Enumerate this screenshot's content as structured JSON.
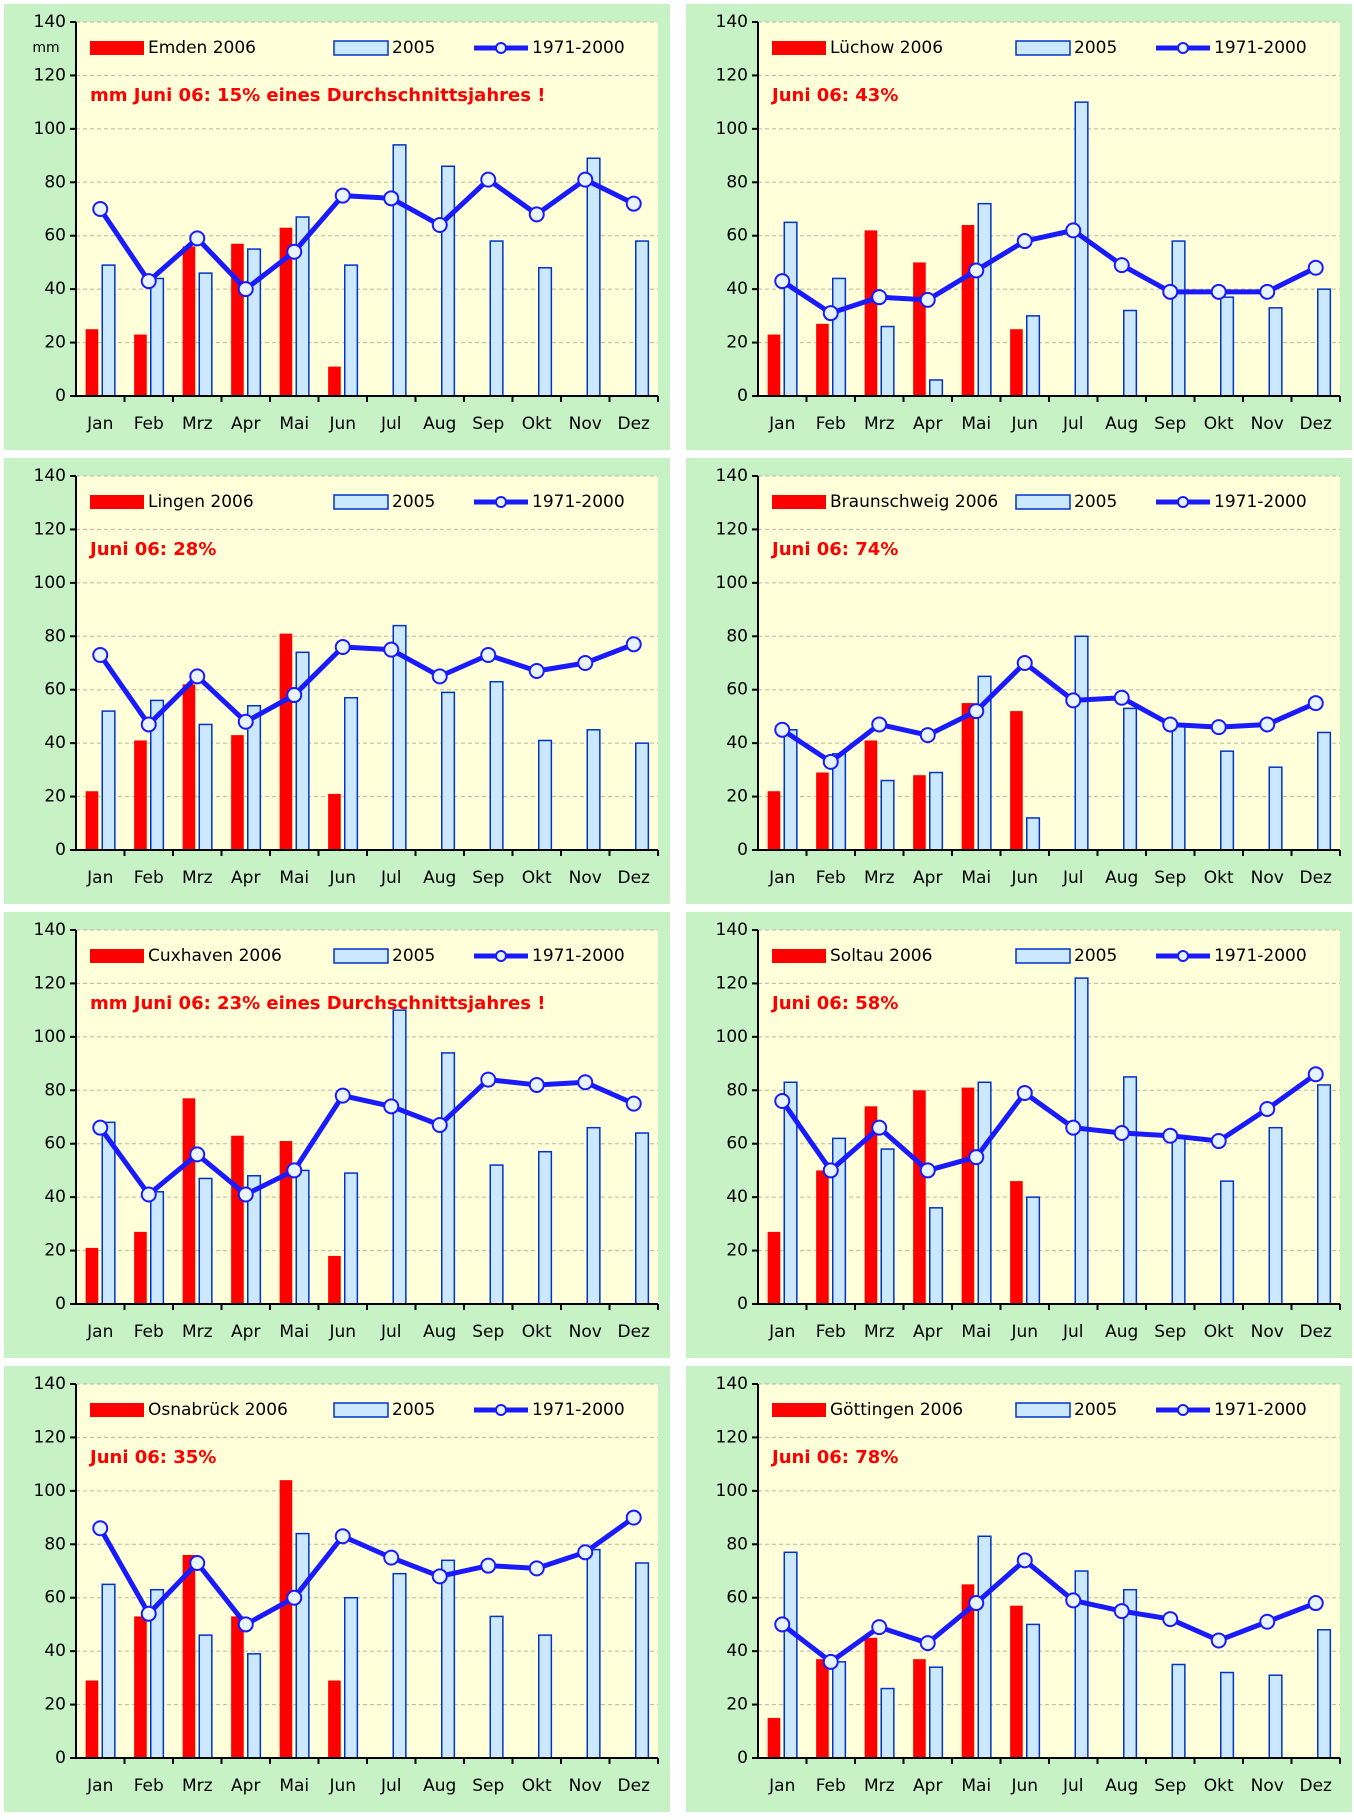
{
  "chart_data": [
    {
      "type": "bar",
      "ylabel": "mm",
      "annotation": "mm Juni 06: 15% eines Durchschnittsjahres !",
      "categories": [
        "Jan",
        "Feb",
        "Mrz",
        "Apr",
        "Mai",
        "Jun",
        "Jul",
        "Aug",
        "Sep",
        "Okt",
        "Nov",
        "Dez"
      ],
      "ylim": [
        0,
        140
      ],
      "yticks": [
        0,
        20,
        40,
        60,
        80,
        100,
        120,
        140
      ],
      "grid": true,
      "series": [
        {
          "name": "Emden 2006",
          "type": "bar",
          "color": "#ff0000",
          "values": [
            25,
            23,
            56,
            57,
            63,
            11,
            null,
            null,
            null,
            null,
            null,
            null
          ]
        },
        {
          "name": "2005",
          "type": "bar",
          "color": "#cce8ff",
          "values": [
            49,
            44,
            46,
            55,
            67,
            49,
            94,
            86,
            58,
            48,
            89,
            58
          ]
        },
        {
          "name": "1971-2000",
          "type": "line",
          "color": "#1a1aff",
          "values": [
            70,
            43,
            59,
            40,
            54,
            75,
            74,
            64,
            81,
            68,
            81,
            72
          ]
        }
      ]
    },
    {
      "type": "bar",
      "annotation": "Juni 06: 43%",
      "categories": [
        "Jan",
        "Feb",
        "Mrz",
        "Apr",
        "Mai",
        "Jun",
        "Jul",
        "Aug",
        "Sep",
        "Okt",
        "Nov",
        "Dez"
      ],
      "ylim": [
        0,
        140
      ],
      "yticks": [
        0,
        20,
        40,
        60,
        80,
        100,
        120,
        140
      ],
      "grid": true,
      "series": [
        {
          "name": "Lüchow 2006",
          "type": "bar",
          "color": "#ff0000",
          "values": [
            23,
            27,
            62,
            50,
            64,
            25,
            null,
            null,
            null,
            null,
            null,
            null
          ]
        },
        {
          "name": "2005",
          "type": "bar",
          "color": "#cce8ff",
          "values": [
            65,
            44,
            26,
            6,
            72,
            30,
            110,
            32,
            58,
            37,
            33,
            40
          ]
        },
        {
          "name": "1971-2000",
          "type": "line",
          "color": "#1a1aff",
          "values": [
            43,
            31,
            37,
            36,
            47,
            58,
            62,
            49,
            39,
            39,
            39,
            48
          ]
        }
      ]
    },
    {
      "type": "bar",
      "annotation": "Juni 06: 28%",
      "categories": [
        "Jan",
        "Feb",
        "Mrz",
        "Apr",
        "Mai",
        "Jun",
        "Jul",
        "Aug",
        "Sep",
        "Okt",
        "Nov",
        "Dez"
      ],
      "ylim": [
        0,
        140
      ],
      "yticks": [
        0,
        20,
        40,
        60,
        80,
        100,
        120,
        140
      ],
      "grid": true,
      "series": [
        {
          "name": "Lingen 2006",
          "type": "bar",
          "color": "#ff0000",
          "values": [
            22,
            41,
            62,
            43,
            81,
            21,
            null,
            null,
            null,
            null,
            null,
            null
          ]
        },
        {
          "name": "2005",
          "type": "bar",
          "color": "#cce8ff",
          "values": [
            52,
            56,
            47,
            54,
            74,
            57,
            84,
            59,
            63,
            41,
            45,
            40
          ]
        },
        {
          "name": "1971-2000",
          "type": "line",
          "color": "#1a1aff",
          "values": [
            73,
            47,
            65,
            48,
            58,
            76,
            75,
            65,
            73,
            67,
            70,
            77
          ]
        }
      ]
    },
    {
      "type": "bar",
      "annotation": "Juni 06: 74%",
      "categories": [
        "Jan",
        "Feb",
        "Mrz",
        "Apr",
        "Mai",
        "Jun",
        "Jul",
        "Aug",
        "Sep",
        "Okt",
        "Nov",
        "Dez"
      ],
      "ylim": [
        0,
        140
      ],
      "yticks": [
        0,
        20,
        40,
        60,
        80,
        100,
        120,
        140
      ],
      "grid": true,
      "series": [
        {
          "name": "Braunschweig 2006",
          "type": "bar",
          "color": "#ff0000",
          "values": [
            22,
            29,
            41,
            28,
            55,
            52,
            null,
            null,
            null,
            null,
            null,
            null
          ]
        },
        {
          "name": "2005",
          "type": "bar",
          "color": "#cce8ff",
          "values": [
            45,
            36,
            26,
            29,
            65,
            12,
            80,
            53,
            47,
            37,
            31,
            44
          ]
        },
        {
          "name": "1971-2000",
          "type": "line",
          "color": "#1a1aff",
          "values": [
            45,
            33,
            47,
            43,
            52,
            70,
            56,
            57,
            47,
            46,
            47,
            55
          ]
        }
      ]
    },
    {
      "type": "bar",
      "annotation": "mm Juni 06: 23% eines Durchschnittsjahres !",
      "categories": [
        "Jan",
        "Feb",
        "Mrz",
        "Apr",
        "Mai",
        "Jun",
        "Jul",
        "Aug",
        "Sep",
        "Okt",
        "Nov",
        "Dez"
      ],
      "ylim": [
        0,
        140
      ],
      "yticks": [
        0,
        20,
        40,
        60,
        80,
        100,
        120,
        140
      ],
      "grid": true,
      "series": [
        {
          "name": "Cuxhaven 2006",
          "type": "bar",
          "color": "#ff0000",
          "values": [
            21,
            27,
            77,
            63,
            61,
            18,
            null,
            null,
            null,
            null,
            null,
            null
          ]
        },
        {
          "name": "2005",
          "type": "bar",
          "color": "#cce8ff",
          "values": [
            68,
            42,
            47,
            48,
            50,
            49,
            110,
            94,
            52,
            57,
            66,
            64
          ]
        },
        {
          "name": "1971-2000",
          "type": "line",
          "color": "#1a1aff",
          "values": [
            66,
            41,
            56,
            41,
            50,
            78,
            74,
            67,
            84,
            82,
            83,
            75
          ]
        }
      ]
    },
    {
      "type": "bar",
      "annotation": "Juni 06: 58%",
      "categories": [
        "Jan",
        "Feb",
        "Mrz",
        "Apr",
        "Mai",
        "Jun",
        "Jul",
        "Aug",
        "Sep",
        "Okt",
        "Nov",
        "Dez"
      ],
      "ylim": [
        0,
        140
      ],
      "yticks": [
        0,
        20,
        40,
        60,
        80,
        100,
        120,
        140
      ],
      "grid": true,
      "series": [
        {
          "name": "Soltau 2006",
          "type": "bar",
          "color": "#ff0000",
          "values": [
            27,
            50,
            74,
            80,
            81,
            46,
            null,
            null,
            null,
            null,
            null,
            null
          ]
        },
        {
          "name": "2005",
          "type": "bar",
          "color": "#cce8ff",
          "values": [
            83,
            62,
            58,
            36,
            83,
            40,
            122,
            85,
            63,
            46,
            66,
            82
          ]
        },
        {
          "name": "1971-2000",
          "type": "line",
          "color": "#1a1aff",
          "values": [
            76,
            50,
            66,
            50,
            55,
            79,
            66,
            64,
            63,
            61,
            73,
            86
          ]
        }
      ]
    },
    {
      "type": "bar",
      "annotation": "Juni 06: 35%",
      "categories": [
        "Jan",
        "Feb",
        "Mrz",
        "Apr",
        "Mai",
        "Jun",
        "Jul",
        "Aug",
        "Sep",
        "Okt",
        "Nov",
        "Dez"
      ],
      "ylim": [
        0,
        140
      ],
      "yticks": [
        0,
        20,
        40,
        60,
        80,
        100,
        120,
        140
      ],
      "grid": true,
      "series": [
        {
          "name": "Osnabrück 2006",
          "type": "bar",
          "color": "#ff0000",
          "values": [
            29,
            53,
            76,
            53,
            104,
            29,
            null,
            null,
            null,
            null,
            null,
            null
          ]
        },
        {
          "name": "2005",
          "type": "bar",
          "color": "#cce8ff",
          "values": [
            65,
            63,
            46,
            39,
            84,
            60,
            69,
            74,
            53,
            46,
            78,
            73
          ]
        },
        {
          "name": "1971-2000",
          "type": "line",
          "color": "#1a1aff",
          "values": [
            86,
            54,
            73,
            50,
            60,
            83,
            75,
            68,
            72,
            71,
            77,
            90
          ]
        }
      ]
    },
    {
      "type": "bar",
      "annotation": "Juni 06: 78%",
      "categories": [
        "Jan",
        "Feb",
        "Mrz",
        "Apr",
        "Mai",
        "Jun",
        "Jul",
        "Aug",
        "Sep",
        "Okt",
        "Nov",
        "Dez"
      ],
      "ylim": [
        0,
        140
      ],
      "yticks": [
        0,
        20,
        40,
        60,
        80,
        100,
        120,
        140
      ],
      "grid": true,
      "series": [
        {
          "name": "Göttingen 2006",
          "type": "bar",
          "color": "#ff0000",
          "values": [
            15,
            37,
            45,
            37,
            65,
            57,
            null,
            null,
            null,
            null,
            null,
            null
          ]
        },
        {
          "name": "2005",
          "type": "bar",
          "color": "#cce8ff",
          "values": [
            77,
            36,
            26,
            34,
            83,
            50,
            70,
            63,
            35,
            32,
            31,
            48
          ]
        },
        {
          "name": "1971-2000",
          "type": "line",
          "color": "#1a1aff",
          "values": [
            50,
            36,
            49,
            43,
            58,
            74,
            59,
            55,
            52,
            44,
            51,
            58
          ]
        }
      ]
    }
  ]
}
